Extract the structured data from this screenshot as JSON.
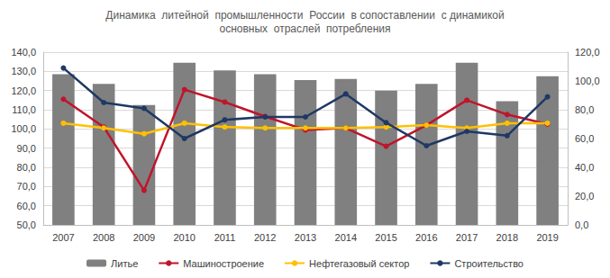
{
  "chart_data": {
    "type": "bar",
    "title": "Динамика  литейной  промышленности  России  в сопоставлении  с динамикой\nосновных  отраслей  потребления",
    "categories": [
      "2007",
      "2008",
      "2009",
      "2010",
      "2011",
      "2012",
      "2013",
      "2014",
      "2015",
      "2016",
      "2017",
      "2018",
      "2019"
    ],
    "series": [
      {
        "name": "Литье",
        "type": "bar",
        "color": "#808080",
        "values": [
          128.5,
          123.5,
          112.5,
          134.5,
          130.5,
          128.5,
          125.5,
          126,
          120,
          123.5,
          134.5,
          114.5,
          127.5
        ]
      },
      {
        "name": "Машиностроение",
        "type": "line",
        "color": "#c0142b",
        "marker": "circle",
        "values": [
          115.5,
          101,
          68,
          120.5,
          114,
          106.5,
          99.5,
          100.5,
          91,
          102,
          115,
          107.5,
          102.5
        ]
      },
      {
        "name": "Нефтегазовый сектор",
        "type": "line",
        "color": "#ffc000",
        "marker": "circle",
        "values": [
          103,
          100.5,
          97.5,
          103,
          101,
          100.5,
          100.5,
          100.5,
          101,
          102,
          100.5,
          103,
          103
        ]
      },
      {
        "name": "Строительство",
        "type": "line",
        "color": "#1f3864",
        "marker": "circle",
        "axis": "y2",
        "values": [
          109,
          85,
          81,
          60,
          73,
          75,
          75,
          91,
          71,
          55,
          65,
          62,
          89
        ]
      }
    ],
    "ylim": [
      50,
      140
    ],
    "yticks": [
      {
        "value": 50,
        "label": "50,0"
      },
      {
        "value": 60,
        "label": "60,0"
      },
      {
        "value": 70,
        "label": "70,0"
      },
      {
        "value": 80,
        "label": "80,0"
      },
      {
        "value": 90,
        "label": "90,0"
      },
      {
        "value": 100,
        "label": "100,0"
      },
      {
        "value": 110,
        "label": "110,0"
      },
      {
        "value": 120,
        "label": "120,0"
      },
      {
        "value": 130,
        "label": "130,0"
      },
      {
        "value": 140,
        "label": "140,0"
      }
    ],
    "y2lim": [
      0,
      120
    ],
    "y2ticks": [
      {
        "value": 0,
        "label": "0,0"
      },
      {
        "value": 20,
        "label": "20,0"
      },
      {
        "value": 40,
        "label": "40,0"
      },
      {
        "value": 60,
        "label": "60,0"
      },
      {
        "value": 80,
        "label": "80,0"
      },
      {
        "value": 100,
        "label": "100,0"
      },
      {
        "value": 120,
        "label": "120,0"
      }
    ],
    "grid": true,
    "legend": "bottom"
  }
}
